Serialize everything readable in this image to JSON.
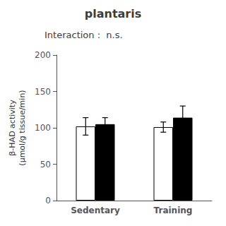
{
  "chart_data": {
    "type": "bar",
    "title": "plantaris",
    "annotation": "Interaction :  n.s.",
    "categories": [
      "Sedentary",
      "Training"
    ],
    "series": [
      {
        "color": "#ffffff",
        "values": [
          102,
          101
        ],
        "errors": [
          12,
          7
        ]
      },
      {
        "color": "#000000",
        "values": [
          105,
          114
        ],
        "errors": [
          9,
          16
        ]
      }
    ],
    "ylabel": "β-HAD activity\n(μmol/g tissue/min)",
    "ylim": [
      0,
      200
    ],
    "yticks": [
      0,
      50,
      100,
      150,
      200
    ],
    "grid": false
  }
}
